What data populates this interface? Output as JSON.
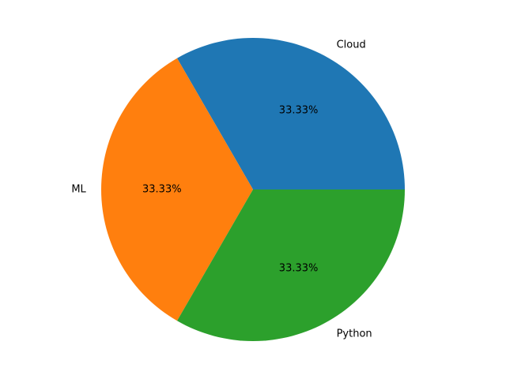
{
  "chart_data": {
    "type": "pie",
    "title": "",
    "categories": [
      "Cloud",
      "ML",
      "Python"
    ],
    "values": [
      1,
      1,
      1
    ],
    "percent_labels": [
      "33.33%",
      "33.33%",
      "33.33%"
    ],
    "colors": [
      "#1f77b4",
      "#ff7f0e",
      "#2ca02c"
    ],
    "start_angle_deg": 0,
    "direction": "counterclockwise",
    "legend": "none"
  }
}
